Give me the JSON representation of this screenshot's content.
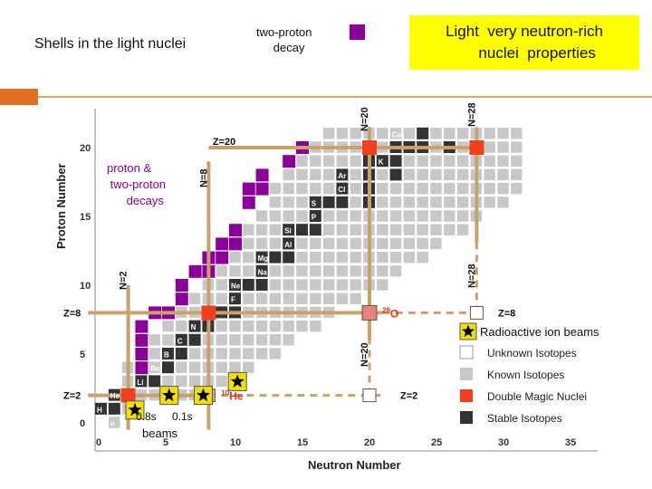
{
  "slide": {
    "title": "Shells in the light nuclei",
    "two_proton_label": "two-proton\n   decay",
    "highlight_box": "Light  very neutron-rich\n      nuclei  properties",
    "accent_color": "#e07020"
  },
  "chart_data": {
    "type": "heatmap",
    "title": "",
    "xlabel": "Neutron  Number",
    "ylabel": "Proton Number",
    "xlim": [
      -1,
      37
    ],
    "ylim": [
      -0.8,
      21.5
    ],
    "x_ticks": [
      0,
      5,
      10,
      15,
      20,
      25,
      30,
      35
    ],
    "y_ticks": [
      0,
      5,
      10,
      15,
      20
    ],
    "colors": {
      "known": "#c8c8c8",
      "stable": "#333333",
      "double_magic": "#f04020",
      "two_proton": "#8b0099",
      "magic_line": "#c9a26a",
      "beam_star_bg": "#f0e000"
    },
    "magic_lines": [
      {
        "axis": "Z",
        "value": 20,
        "label": "Z=20",
        "from": 8,
        "to": 28
      },
      {
        "axis": "Z",
        "value": 8,
        "label": "Z=8",
        "from": -1,
        "to": 21
      },
      {
        "axis": "Z",
        "value": 2,
        "label": "Z=2",
        "from": -1,
        "to": 8
      },
      {
        "axis": "N",
        "value": 8,
        "label": "N=8",
        "from": -0.5,
        "to": 19
      },
      {
        "axis": "N",
        "value": 2,
        "label": "N=2",
        "from": -0.5,
        "to": 10
      },
      {
        "axis": "N",
        "value": 20,
        "label": "N=20",
        "from": 6,
        "to": 21.5
      },
      {
        "axis": "N",
        "value": 28,
        "label": "N=28",
        "from": 13,
        "to": 21.5
      }
    ],
    "dashed_lines": [
      {
        "axis": "Z",
        "value": 8,
        "label": "Z=8",
        "from": 21,
        "to": 28
      },
      {
        "axis": "Z",
        "value": 2,
        "label": "Z=2",
        "from": 8,
        "to": 21
      },
      {
        "axis": "N",
        "value": 20,
        "label": "N=20",
        "from": 2,
        "to": 7
      },
      {
        "axis": "N",
        "value": 28,
        "label": "N=28",
        "from": 8,
        "to": 13
      }
    ],
    "element_labels": [
      {
        "z": 21,
        "n": 22,
        "label": "Ca"
      },
      {
        "z": 19,
        "n": 21,
        "label": "K"
      },
      {
        "z": 18,
        "n": 18,
        "label": "Ar"
      },
      {
        "z": 17,
        "n": 18,
        "label": "Cl"
      },
      {
        "z": 16,
        "n": 16,
        "label": "S"
      },
      {
        "z": 15,
        "n": 16,
        "label": "P"
      },
      {
        "z": 14,
        "n": 14,
        "label": "Si"
      },
      {
        "z": 13,
        "n": 14,
        "label": "Al"
      },
      {
        "z": 12,
        "n": 12,
        "label": "Mg"
      },
      {
        "z": 11,
        "n": 12,
        "label": "Na"
      },
      {
        "z": 10,
        "n": 10,
        "label": "Ne"
      },
      {
        "z": 9,
        "n": 10,
        "label": "F"
      },
      {
        "z": 7,
        "n": 7,
        "label": "N"
      },
      {
        "z": 6,
        "n": 6,
        "label": "C"
      },
      {
        "z": 5,
        "n": 5,
        "label": "B"
      },
      {
        "z": 4,
        "n": 4,
        "label": "Be"
      },
      {
        "z": 3,
        "n": 3,
        "label": "Li"
      },
      {
        "z": 2,
        "n": 1,
        "label": "He"
      },
      {
        "z": 1,
        "n": 0,
        "label": "H"
      },
      {
        "z": 0,
        "n": 1,
        "label": "n"
      }
    ],
    "stable": [
      [
        1,
        0
      ],
      [
        1,
        1
      ],
      [
        2,
        1
      ],
      [
        2,
        2
      ],
      [
        3,
        3
      ],
      [
        3,
        4
      ],
      [
        4,
        5
      ],
      [
        5,
        5
      ],
      [
        5,
        6
      ],
      [
        6,
        6
      ],
      [
        6,
        7
      ],
      [
        7,
        7
      ],
      [
        7,
        8
      ],
      [
        8,
        8
      ],
      [
        8,
        9
      ],
      [
        8,
        10
      ],
      [
        9,
        10
      ],
      [
        10,
        10
      ],
      [
        10,
        11
      ],
      [
        10,
        12
      ],
      [
        11,
        12
      ],
      [
        12,
        12
      ],
      [
        12,
        13
      ],
      [
        12,
        14
      ],
      [
        13,
        14
      ],
      [
        14,
        14
      ],
      [
        14,
        15
      ],
      [
        14,
        16
      ],
      [
        15,
        16
      ],
      [
        16,
        16
      ],
      [
        16,
        17
      ],
      [
        16,
        18
      ],
      [
        16,
        20
      ],
      [
        17,
        18
      ],
      [
        17,
        20
      ],
      [
        18,
        18
      ],
      [
        18,
        20
      ],
      [
        18,
        22
      ],
      [
        19,
        20
      ],
      [
        19,
        21
      ],
      [
        19,
        22
      ],
      [
        20,
        20
      ],
      [
        20,
        22
      ],
      [
        20,
        23
      ],
      [
        20,
        24
      ],
      [
        20,
        26
      ],
      [
        20,
        28
      ],
      [
        21,
        24
      ]
    ],
    "double_magic": [
      [
        2,
        2
      ],
      [
        8,
        8
      ],
      [
        20,
        20
      ],
      [
        20,
        28
      ]
    ],
    "predicted_double_magic": [
      [
        2,
        20
      ],
      [
        8,
        28
      ]
    ],
    "two_proton_emitters": [
      [
        4,
        3
      ],
      [
        5,
        3
      ],
      [
        6,
        3
      ],
      [
        7,
        3
      ],
      [
        8,
        4
      ],
      [
        8,
        5
      ],
      [
        9,
        6
      ],
      [
        10,
        6
      ],
      [
        11,
        7
      ],
      [
        11,
        8
      ],
      [
        12,
        8
      ],
      [
        12,
        9
      ],
      [
        13,
        9
      ],
      [
        13,
        10
      ],
      [
        14,
        10
      ],
      [
        16,
        11
      ],
      [
        17,
        11
      ],
      [
        17,
        12
      ],
      [
        18,
        12
      ],
      [
        19,
        14
      ],
      [
        20,
        15
      ]
    ],
    "beam_stars": [
      [
        1,
        2
      ],
      [
        2,
        4
      ],
      [
        2,
        6
      ],
      [
        3,
        8
      ]
    ],
    "nuclide_labels": [
      {
        "z": 8,
        "n": 20,
        "mass": "28",
        "symbol": "O"
      },
      {
        "z": 2,
        "n": 8,
        "mass": "10",
        "symbol": "He"
      }
    ],
    "annotations": [
      {
        "text": "proton &\n two-proton\n      decays"
      },
      {
        "text": "0.8s"
      },
      {
        "text": "0.1s"
      },
      {
        "text": "beams"
      }
    ],
    "legend": [
      {
        "key": "beams",
        "label": "Radioactive ion beams"
      },
      {
        "key": "unknown",
        "label": "Unknown Isotopes"
      },
      {
        "key": "known",
        "label": "Known Isotopes"
      },
      {
        "key": "double_magic",
        "label": "Double Magic Nuclei"
      },
      {
        "key": "stable",
        "label": "Stable Isotopes"
      }
    ]
  }
}
